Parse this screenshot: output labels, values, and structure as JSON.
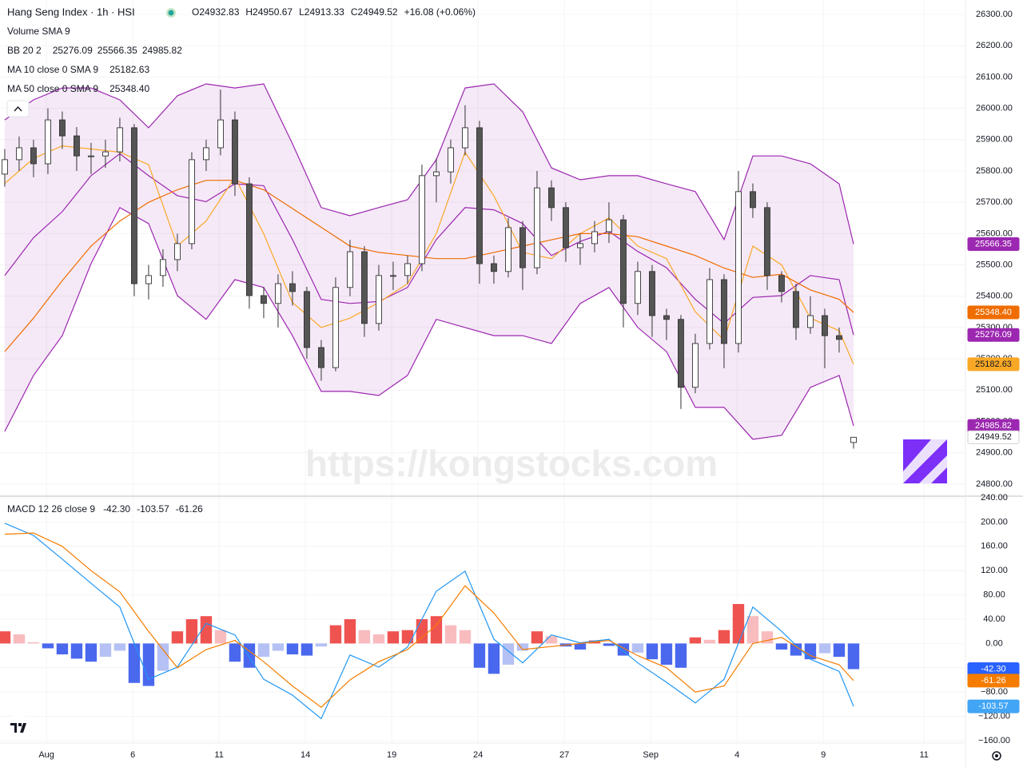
{
  "header": {
    "title": "Hang Seng Index · 1h · HSI",
    "ohlc": [
      "O24932.83",
      "H24950.67",
      "L24913.33",
      "C24949.52",
      "+16.08 (+0.06%)"
    ]
  },
  "legend": [
    {
      "label": "Volume SMA 9"
    },
    {
      "label": "BB 20 2",
      "color": "#9c27b0",
      "values": [
        "25276.09",
        "25566.35",
        "24985.82"
      ]
    },
    {
      "label": "MA 10 close 0 SMA 9",
      "color": "#f9a825",
      "values": [
        "25182.63"
      ]
    },
    {
      "label": "MA 50 close 0 SMA 9",
      "color": "#ef6c00",
      "values": [
        "25348.40"
      ]
    }
  ],
  "watermark": "https://kongstocks.com",
  "chart_data": [
    {
      "type": "candlestick",
      "xlim": [
        -0.33,
        66.78
      ],
      "ylim": [
        24764,
        26346
      ],
      "grid": true,
      "up_color": "#ffffff",
      "down_color": "#555555",
      "yticks": [
        {
          "value": 24800,
          "label": "24800.00"
        },
        {
          "value": 24900,
          "label": "24900.00"
        },
        {
          "value": 25000,
          "label": "25000.00"
        },
        {
          "value": 25100,
          "label": "25100.00"
        },
        {
          "value": 25200,
          "label": "25200.00"
        },
        {
          "value": 25300,
          "label": "25300.00"
        },
        {
          "value": 25400,
          "label": "25400.00"
        },
        {
          "value": 25500,
          "label": "25500.00"
        },
        {
          "value": 25600,
          "label": "25600.00"
        },
        {
          "value": 25700,
          "label": "25700.00"
        },
        {
          "value": 25800,
          "label": "25800.00"
        },
        {
          "value": 25900,
          "label": "25900.00"
        },
        {
          "value": 26000,
          "label": "26000.00"
        },
        {
          "value": 26100,
          "label": "26100.00"
        },
        {
          "value": 26200,
          "label": "26200.00"
        },
        {
          "value": 26300,
          "label": "26300.00"
        }
      ],
      "xticks": [
        {
          "value": 2.9,
          "label": "Aug"
        },
        {
          "value": 8.9,
          "label": "6"
        },
        {
          "value": 14.9,
          "label": "11"
        },
        {
          "value": 20.9,
          "label": "14"
        },
        {
          "value": 26.9,
          "label": "19"
        },
        {
          "value": 32.9,
          "label": "24"
        },
        {
          "value": 38.9,
          "label": "27"
        },
        {
          "value": 44.9,
          "label": "Sep"
        },
        {
          "value": 50.9,
          "label": "4"
        },
        {
          "value": 56.9,
          "label": "9"
        },
        {
          "value": 63.9,
          "label": "11"
        }
      ],
      "open": [
        25790,
        25836,
        25874,
        25823,
        25963,
        25912,
        25848,
        25848,
        25861,
        25938,
        25440,
        25466,
        25517,
        25568,
        25836,
        25874,
        25963,
        25759,
        25402,
        25377,
        25440,
        25415,
        25236,
        25172,
        25428,
        25542,
        25313,
        25466,
        25466,
        25504,
        25785,
        25797,
        25874,
        25938,
        25504,
        25479,
        25619,
        25491,
        25746,
        25683,
        25555,
        25568,
        25606,
        25644,
        25377,
        25479,
        25338,
        25326,
        25109,
        25249,
        25453,
        25249,
        25734,
        25683,
        25466,
        25415,
        25300,
        25338,
        25274,
        24932.83
      ],
      "high": [
        25870,
        25910,
        25900,
        26000,
        25990,
        25940,
        25890,
        25900,
        25970,
        25950,
        25500,
        25550,
        25600,
        25860,
        25900,
        26060,
        25990,
        25780,
        25430,
        25470,
        25480,
        25430,
        25260,
        25460,
        25580,
        25560,
        25500,
        25510,
        25530,
        25820,
        25840,
        25900,
        26010,
        25960,
        25530,
        25650,
        25640,
        25800,
        25770,
        25700,
        25600,
        25640,
        25700,
        25660,
        25510,
        25500,
        25360,
        25340,
        25280,
        25490,
        25470,
        25800,
        25760,
        25700,
        25480,
        25440,
        25400,
        25360,
        25300,
        24950.67
      ],
      "low": [
        25750,
        25800,
        25780,
        25790,
        25870,
        25800,
        25790,
        25810,
        25830,
        25400,
        25390,
        25430,
        25480,
        25550,
        25800,
        25850,
        25720,
        25360,
        25330,
        25300,
        25370,
        25200,
        25130,
        25160,
        25400,
        25270,
        25290,
        25420,
        25440,
        25480,
        25700,
        25760,
        25850,
        25440,
        25440,
        25460,
        25420,
        25470,
        25640,
        25510,
        25500,
        25540,
        25570,
        25300,
        25340,
        25270,
        25260,
        25040,
        25090,
        25230,
        25170,
        25220,
        25650,
        25420,
        25380,
        25260,
        25280,
        25170,
        25220,
        24913.33
      ],
      "close": [
        25836,
        25874,
        25823,
        25963,
        25912,
        25848,
        25848,
        25861,
        25938,
        25440,
        25466,
        25517,
        25568,
        25836,
        25874,
        25963,
        25759,
        25402,
        25377,
        25440,
        25415,
        25236,
        25172,
        25428,
        25542,
        25313,
        25466,
        25466,
        25504,
        25785,
        25797,
        25874,
        25938,
        25504,
        25479,
        25619,
        25491,
        25746,
        25683,
        25555,
        25568,
        25606,
        25644,
        25377,
        25479,
        25338,
        25326,
        25109,
        25249,
        25453,
        25249,
        25734,
        25683,
        25466,
        25415,
        25300,
        25338,
        25274,
        25262,
        24949.52
      ],
      "line_x": [
        0,
        2,
        4,
        6,
        8,
        10,
        12,
        14,
        16,
        18,
        20,
        22,
        24,
        26,
        28,
        30,
        32,
        34,
        36,
        38,
        40,
        42,
        44,
        46,
        48,
        50,
        52,
        54,
        56,
        58,
        59
      ],
      "band_fill": "rgba(156,39,176,0.1)",
      "series": [
        {
          "color": "#9c27b0",
          "values": [
            25963,
            26027,
            26065,
            26065,
            26027,
            25938,
            26040,
            26078,
            26065,
            26078,
            25887,
            25683,
            25657,
            25683,
            25708,
            25836,
            26065,
            26078,
            25989,
            25810,
            25772,
            25785,
            25785,
            25759,
            25734,
            25581,
            25848,
            25848,
            25823,
            25759,
            25566.35
          ]
        },
        {
          "color": "#9c27b0",
          "values": [
            25466,
            25587,
            25670,
            25785,
            25855,
            25785,
            25721,
            25702,
            25759,
            25753,
            25581,
            25390,
            25377,
            25383,
            25428,
            25581,
            25683,
            25676,
            25632,
            25530,
            25575,
            25607,
            25543,
            25491,
            25390,
            25313,
            25396,
            25402,
            25466,
            25453,
            25276.09
          ]
        },
        {
          "color": "#9c27b0",
          "values": [
            24968,
            25147,
            25274,
            25504,
            25683,
            25632,
            25402,
            25326,
            25453,
            25428,
            25274,
            25096,
            25096,
            25083,
            25147,
            25326,
            25300,
            25274,
            25274,
            25249,
            25377,
            25428,
            25300,
            25223,
            25045,
            25045,
            24943,
            24956,
            25109,
            25147,
            24985.82
          ]
        },
        {
          "color": "#f9a825",
          "values": [
            25760,
            25840,
            25880,
            25870,
            25860,
            25820,
            25560,
            25640,
            25780,
            25600,
            25380,
            25300,
            25330,
            25380,
            25440,
            25600,
            25860,
            25720,
            25540,
            25520,
            25600,
            25650,
            25560,
            25520,
            25350,
            25260,
            25560,
            25500,
            25330,
            25290,
            25182.63
          ]
        },
        {
          "color": "#ef6c00",
          "values": [
            25223,
            25330,
            25450,
            25560,
            25640,
            25700,
            25740,
            25770,
            25770,
            25740,
            25680,
            25620,
            25560,
            25540,
            25530,
            25520,
            25520,
            25540,
            25560,
            25580,
            25600,
            25600,
            25590,
            25560,
            25530,
            25490,
            25460,
            25470,
            25420,
            25390,
            25348.4
          ]
        }
      ],
      "badges": [
        {
          "value": 25566.35,
          "label": "25566.35",
          "color": "#9c27b0",
          "text_color": "#ffffff"
        },
        {
          "value": 25348.4,
          "label": "25348.40",
          "color": "#ef6c00",
          "text_color": "#ffffff"
        },
        {
          "value": 25276.09,
          "label": "25276.09",
          "color": "#9c27b0",
          "text_color": "#ffffff"
        },
        {
          "value": 25182.63,
          "label": "25182.63",
          "color": "#f9a825",
          "text_color": "#131722"
        },
        {
          "value": 24985.82,
          "label": "24985.82",
          "color": "#9c27b0",
          "text_color": "#ffffff"
        },
        {
          "value": 24949.52,
          "label": "24949.52",
          "color": "#ffffff",
          "text_color": "#131722"
        }
      ]
    },
    {
      "type": "macd",
      "title": "MACD 12 26 close 9",
      "legend_values": [
        {
          "text": "-42.30",
          "color": "#2962ff"
        },
        {
          "text": "-103.57",
          "color": "#2196f3"
        },
        {
          "text": "-61.26",
          "color": "#f57c00"
        }
      ],
      "xlim": [
        -0.33,
        66.78
      ],
      "ylim": [
        -164,
        240
      ],
      "grid": true,
      "yticks": [
        {
          "value": 240,
          "label": "240.00"
        },
        {
          "value": 200,
          "label": "200.00"
        },
        {
          "value": 160,
          "label": "160.00"
        },
        {
          "value": 120,
          "label": "120.00"
        },
        {
          "value": 80,
          "label": "80.00"
        },
        {
          "value": 40,
          "label": "40.00"
        },
        {
          "value": 0,
          "label": "0.00"
        },
        {
          "value": -40,
          "label": "−40.00"
        },
        {
          "value": -80,
          "label": "−80.00"
        },
        {
          "value": -120,
          "label": "−120.00"
        },
        {
          "value": -160,
          "label": "−160.00"
        }
      ],
      "histogram": [
        20,
        15,
        2,
        -8,
        -18,
        -25,
        -30,
        -22,
        -12,
        -65,
        -70,
        -45,
        20,
        40,
        45,
        22,
        -30,
        -40,
        -22,
        -12,
        -18,
        -20,
        -5,
        30,
        40,
        22,
        15,
        20,
        22,
        40,
        45,
        30,
        22,
        -40,
        -50,
        -35,
        -12,
        20,
        12,
        -5,
        -10,
        5,
        -4,
        -20,
        -15,
        -26,
        -35,
        -40,
        10,
        6,
        22,
        65,
        45,
        20,
        -10,
        -20,
        -26,
        -16,
        -22,
        -42.3
      ],
      "hist_colors": [
        "#ef5350",
        "#f8bcbf",
        "#b5c1f4",
        "#4a68ee"
      ],
      "line_x": [
        0,
        2,
        4,
        6,
        8,
        10,
        12,
        14,
        16,
        18,
        20,
        22,
        24,
        26,
        28,
        30,
        32,
        34,
        36,
        38,
        40,
        42,
        44,
        46,
        48,
        50,
        52,
        54,
        56,
        58,
        59
      ],
      "series": [
        {
          "color": "#2196f3",
          "values": [
            198,
            178,
            139,
            99,
            60,
            -59,
            -39,
            33,
            14,
            -59,
            -85,
            -124,
            -19,
            -39,
            -6,
            86,
            119,
            7,
            -32,
            14,
            1,
            7,
            -32,
            -64,
            -98,
            -59,
            60,
            20,
            -26,
            -46,
            -103.57
          ]
        },
        {
          "color": "#f57c00",
          "values": [
            180,
            182,
            160,
            120,
            85,
            20,
            -40,
            -10,
            5,
            -30,
            -70,
            -105,
            -60,
            -30,
            -10,
            30,
            95,
            50,
            -10,
            -5,
            0,
            5,
            -20,
            -40,
            -80,
            -70,
            0,
            10,
            -20,
            -35,
            -61.26
          ]
        }
      ],
      "badges": [
        {
          "value": -42.3,
          "label": "-42.30",
          "color": "#2962ff",
          "text_color": "#ffffff"
        },
        {
          "value": -61.26,
          "label": "-61.26",
          "color": "#f57c00",
          "text_color": "#ffffff"
        },
        {
          "value": -103.57,
          "label": "-103.57",
          "color": "#42a5f5",
          "text_color": "#ffffff"
        }
      ]
    }
  ]
}
